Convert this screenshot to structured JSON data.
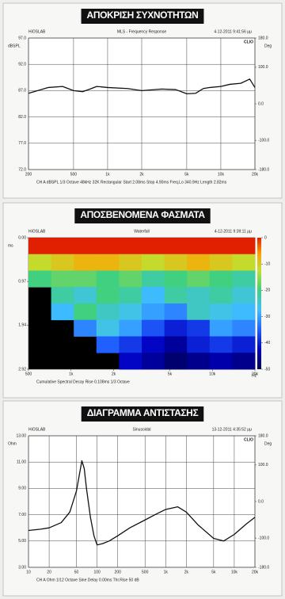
{
  "chart_data": [
    {
      "type": "line",
      "banner": "ΑΠΟΚΡΙΣΗ ΣΥΧΝΟΤΗΤΩΝ",
      "brand": "HiOSLAB",
      "title": "MLS - Frequency Response",
      "date": "4-12-2011 9:41:56 μμ",
      "logo": "CLIO",
      "ylabel": "dBSPL",
      "y2label": "Deg",
      "footer": "CH A  dBSPL  1/3 Octave  48kHz  32K  Rectangular  Start 2.08ms  Stop 4.90ms  Freq.Lo 340.9Hz  Length 2.82ms",
      "xscale": "log",
      "xlim": [
        200,
        20000
      ],
      "xticks": [
        200,
        500,
        {
          "value": 1000,
          "label": "1k"
        },
        {
          "value": 2000,
          "label": "2k"
        },
        {
          "value": 5000,
          "label": "5k"
        },
        {
          "value": 10000,
          "label": "10k"
        },
        {
          "value": 20000,
          "label": "20k"
        }
      ],
      "ylim": [
        72,
        97
      ],
      "yticks": [
        {
          "value": 72,
          "label": "72.0"
        },
        {
          "value": 77,
          "label": "77.0"
        },
        {
          "value": 82,
          "label": "82.0"
        },
        {
          "value": 87,
          "label": "87.0"
        },
        {
          "value": 92,
          "label": "92.0"
        },
        {
          "value": 97,
          "label": "97.0"
        }
      ],
      "y2lim": [
        -180,
        180
      ],
      "y2ticks": [
        {
          "value": -180,
          "label": "-180.0"
        },
        {
          "value": -100,
          "label": "-100.0"
        },
        {
          "value": 0,
          "label": "0.0"
        },
        {
          "value": 100,
          "label": "100.0"
        },
        {
          "value": 180,
          "label": "180.0"
        }
      ],
      "grid": true,
      "color": "#111111",
      "x": [
        200,
        300,
        400,
        500,
        600,
        700,
        800,
        1000,
        1500,
        2000,
        3000,
        4000,
        5000,
        6000,
        7000,
        8000,
        10000,
        12000,
        15000,
        18000,
        20000
      ],
      "values": [
        86.5,
        87.6,
        87.8,
        87.0,
        86.8,
        87.3,
        87.8,
        87.6,
        87.4,
        87.0,
        87.3,
        87.2,
        86.4,
        86.5,
        87.4,
        87.6,
        87.8,
        88.2,
        88.4,
        89.2,
        87.6
      ]
    },
    {
      "type": "heatmap",
      "banner": "ΑΠΟΣΒΕΝΟΜΕΝΑ ΦΑΣΜΑΤΑ",
      "brand": "HiOSLAB",
      "title": "Waterfall",
      "date": "4-12-2011 9:39:11 μμ",
      "logo": "CLIO",
      "ylabel": "ms",
      "xunit": "Hz",
      "footer": "Cumulative Spectral Decay  Rise 0.108ms  1/3 Octave",
      "xscale": "log",
      "xlim": [
        500,
        20000
      ],
      "xticks": [
        500,
        {
          "value": 1000,
          "label": "1k"
        },
        {
          "value": 2000,
          "label": "2k"
        },
        {
          "value": 5000,
          "label": "5k"
        },
        {
          "value": 10000,
          "label": "10k"
        },
        {
          "value": 20000,
          "label": "20k"
        }
      ],
      "ylim": [
        0,
        2.92
      ],
      "yreversed": true,
      "yticks": [
        {
          "value": 0,
          "label": "0.00"
        },
        0.97,
        1.94,
        2.92
      ],
      "zlim": [
        -50,
        0
      ],
      "zticks": [
        0,
        -10,
        -20,
        -30,
        -40,
        -50
      ],
      "values": [
        [
          0,
          0,
          0,
          0,
          0,
          0,
          0,
          0,
          0,
          0
        ],
        [
          -12,
          -10,
          -8,
          -8,
          -10,
          -12,
          -10,
          -8,
          -10,
          -12
        ],
        [
          -20,
          -18,
          -18,
          -20,
          -18,
          -22,
          -20,
          -18,
          -20,
          -22
        ],
        [
          null,
          -22,
          -25,
          -20,
          -22,
          -28,
          -22,
          -24,
          -22,
          -25
        ],
        [
          null,
          -28,
          -20,
          -24,
          -26,
          -30,
          -32,
          -24,
          -26,
          -28
        ],
        [
          null,
          null,
          -32,
          -26,
          -30,
          -36,
          -40,
          -38,
          -30,
          -32
        ],
        [
          null,
          null,
          null,
          -35,
          -38,
          -42,
          -45,
          -40,
          -38,
          -40
        ],
        [
          null,
          null,
          null,
          null,
          -42,
          -45,
          -48,
          -46,
          -44,
          -46
        ]
      ]
    },
    {
      "type": "line",
      "banner": "ΔΙΑΓΡΑΜΜΑ ΑΝΤΙΣΤΑΣΗΣ",
      "brand": "HiOSLAB",
      "title": "Sinusoidal",
      "date": "13-12-2011 4:35:52 μμ",
      "logo": "CLIO",
      "ylabel": "Ohm",
      "y2label": "Deg",
      "footer": "CH A  Ohm  1/12 Octave  Sine  Delay 0.00ms  Thr.Rise 50 dB",
      "xscale": "log",
      "xlim": [
        10,
        20000
      ],
      "xticks": [
        10,
        20,
        50,
        100,
        200,
        500,
        {
          "value": 1000,
          "label": "1k"
        },
        {
          "value": 2000,
          "label": "2k"
        },
        {
          "value": 5000,
          "label": "5k"
        },
        {
          "value": 10000,
          "label": "10k"
        },
        {
          "value": 20000,
          "label": "20k"
        }
      ],
      "ylim": [
        3,
        13
      ],
      "yticks": [
        {
          "value": 3,
          "label": "3.00"
        },
        {
          "value": 5,
          "label": "5.00"
        },
        {
          "value": 7,
          "label": "7.00"
        },
        {
          "value": 9,
          "label": "9.00"
        },
        {
          "value": 11,
          "label": "11.00"
        },
        {
          "value": 13,
          "label": "13.00"
        }
      ],
      "y2lim": [
        -180,
        180
      ],
      "y2ticks": [
        {
          "value": -180,
          "label": "-180.0"
        },
        {
          "value": -100,
          "label": "-100.0"
        },
        {
          "value": 0,
          "label": "0.0"
        },
        {
          "value": 100,
          "label": "100.0"
        },
        {
          "value": 180,
          "label": "180.0"
        }
      ],
      "grid": true,
      "color": "#111111",
      "x": [
        10,
        15,
        20,
        30,
        40,
        50,
        55,
        60,
        65,
        70,
        80,
        90,
        100,
        120,
        150,
        200,
        300,
        500,
        700,
        1000,
        1500,
        2000,
        3000,
        5000,
        7000,
        10000,
        15000,
        20000
      ],
      "values": [
        5.8,
        5.9,
        6.0,
        6.4,
        7.2,
        8.8,
        10.0,
        11.1,
        10.5,
        9.0,
        6.8,
        5.4,
        4.7,
        4.8,
        5.0,
        5.4,
        6.0,
        6.6,
        7.0,
        7.4,
        7.6,
        7.2,
        6.2,
        5.2,
        5.0,
        5.5,
        6.3,
        6.8
      ]
    }
  ]
}
